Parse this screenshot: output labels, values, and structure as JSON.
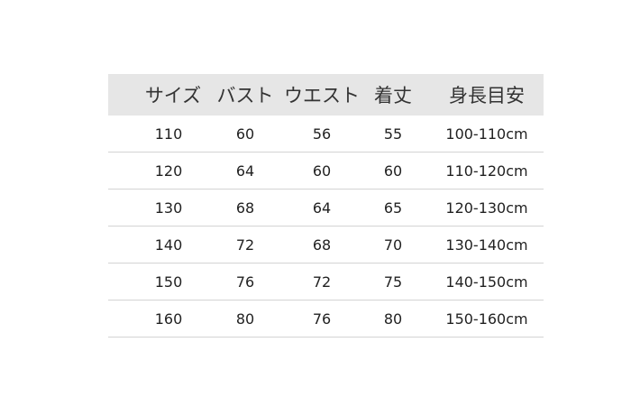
{
  "table": {
    "headers": [
      "サイズ",
      "バスト",
      "ウエスト",
      "着丈",
      "身長目安"
    ],
    "rows": [
      [
        "110",
        "60",
        "56",
        "55",
        "100-110cm"
      ],
      [
        "120",
        "64",
        "60",
        "60",
        "110-120cm"
      ],
      [
        "130",
        "68",
        "64",
        "65",
        "120-130cm"
      ],
      [
        "140",
        "72",
        "68",
        "70",
        "130-140cm"
      ],
      [
        "150",
        "76",
        "72",
        "75",
        "140-150cm"
      ],
      [
        "160",
        "80",
        "76",
        "80",
        "150-160cm"
      ]
    ],
    "colors": {
      "header_bg": "#e6e6e6",
      "divider": "#d4d4d4"
    }
  }
}
